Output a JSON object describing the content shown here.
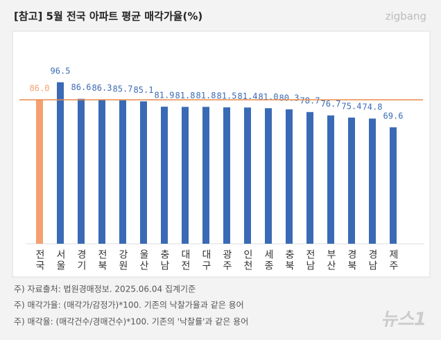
{
  "chart_data": {
    "type": "bar",
    "title": "[참고] 5월 전국 아파트 평균 매각가율(%)",
    "logo": "zigbang",
    "categories": [
      "전국",
      "서울",
      "경기",
      "전북",
      "강원",
      "울산",
      "충남",
      "대전",
      "대구",
      "광주",
      "인천",
      "세종",
      "충북",
      "전남",
      "부산",
      "경북",
      "경남",
      "제주"
    ],
    "values": [
      86.0,
      96.5,
      86.6,
      86.3,
      85.7,
      85.1,
      81.9,
      81.8,
      81.8,
      81.5,
      81.4,
      81.0,
      80.3,
      78.7,
      76.7,
      75.4,
      74.8,
      69.6
    ],
    "value_labels": [
      "86.0",
      "96.5",
      "86.6",
      "86.3",
      "85.7",
      "85.1",
      "81.9",
      "81.8",
      "81.8",
      "81.5",
      "81.4",
      "81.0",
      "80.3",
      "78.7",
      "76.7",
      "75.4",
      "74.8",
      "69.6"
    ],
    "colors": [
      "#f4a070",
      "#3a6ab5",
      "#3a6ab5",
      "#3a6ab5",
      "#3a6ab5",
      "#3a6ab5",
      "#3a6ab5",
      "#3a6ab5",
      "#3a6ab5",
      "#3a6ab5",
      "#3a6ab5",
      "#3a6ab5",
      "#3a6ab5",
      "#3a6ab5",
      "#3a6ab5",
      "#3a6ab5",
      "#3a6ab5",
      "#3a6ab5"
    ],
    "reference_line": {
      "value": 86.0,
      "color": "#e8894a"
    },
    "ylim": [
      0,
      120
    ],
    "notes": [
      "주) 자료출처: 법원경매정보. 2025.06.04 집계기준",
      "주) 매각가율: (매각가/감정가)*100. 기존의 낙찰가율과 같은 용어",
      "주) 매각율: (매각건수/경매건수)*100. 기존의 '낙찰률'과 같은 용어"
    ],
    "watermark": "뉴스1"
  }
}
